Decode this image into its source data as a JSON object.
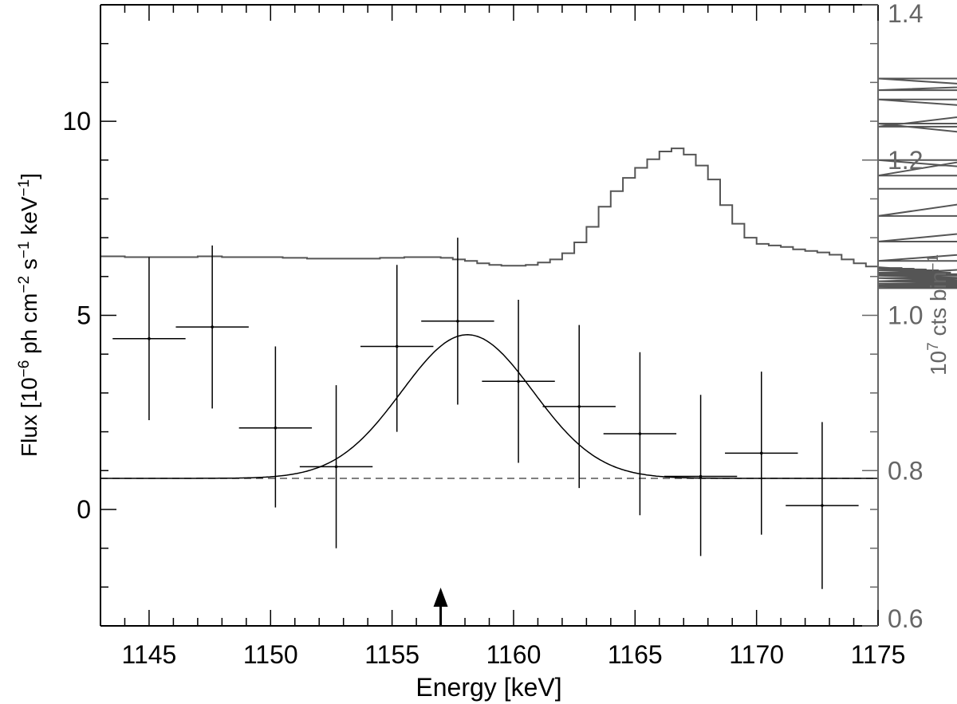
{
  "chart_data": {
    "type": "scatter",
    "xlabel": "Energy [keV]",
    "ylabel_left_parts": [
      "Flux [10",
      "−6",
      " ph cm",
      "−2",
      " s",
      "−1",
      " keV",
      "−1",
      "]"
    ],
    "ylabel_right_parts": [
      "10",
      "7",
      " cts bin",
      "−1"
    ],
    "xlim": [
      1143,
      1175
    ],
    "ylim_left": [
      -3,
      13
    ],
    "ylim_right": [
      0.6,
      1.4
    ],
    "x_ticks": [
      1145,
      1150,
      1155,
      1160,
      1165,
      1170,
      1175
    ],
    "x_tick_labels": [
      "1145",
      "1150",
      "1155",
      "1160",
      "1165",
      "1170",
      "1175"
    ],
    "y_left_ticks": [
      0,
      5,
      10
    ],
    "y_left_tick_labels": [
      "0",
      "5",
      "10"
    ],
    "y_right_ticks": [
      0.6,
      0.8,
      1.0,
      1.2,
      1.4
    ],
    "y_right_tick_labels": [
      "0.6",
      "0.8",
      "1.0",
      "1.2",
      "1.4"
    ],
    "line_marker_energy": 1157.0,
    "colors": {
      "data": "#000000",
      "histogram": "#555555",
      "dashed": "#555555",
      "right_axis": "#666666"
    },
    "data_points": [
      {
        "x": 1145.0,
        "xerr": 1.5,
        "y": 4.4,
        "ylo": 2.3,
        "yhi": 6.5
      },
      {
        "x": 1147.6,
        "xerr": 1.5,
        "y": 4.7,
        "ylo": 2.6,
        "yhi": 6.8
      },
      {
        "x": 1150.2,
        "xerr": 1.5,
        "y": 2.1,
        "ylo": 0.05,
        "yhi": 4.2
      },
      {
        "x": 1152.7,
        "xerr": 1.5,
        "y": 1.1,
        "ylo": -1.0,
        "yhi": 3.2
      },
      {
        "x": 1155.2,
        "xerr": 1.5,
        "y": 4.2,
        "ylo": 2.0,
        "yhi": 6.3
      },
      {
        "x": 1157.7,
        "xerr": 1.5,
        "y": 4.85,
        "ylo": 2.7,
        "yhi": 7.0
      },
      {
        "x": 1160.2,
        "xerr": 1.5,
        "y": 3.3,
        "ylo": 1.2,
        "yhi": 5.4
      },
      {
        "x": 1162.7,
        "xerr": 1.5,
        "y": 2.65,
        "ylo": 0.55,
        "yhi": 4.75
      },
      {
        "x": 1165.2,
        "xerr": 1.5,
        "y": 1.95,
        "ylo": -0.15,
        "yhi": 4.05
      },
      {
        "x": 1167.7,
        "xerr": 1.5,
        "y": 0.85,
        "ylo": -1.2,
        "yhi": 2.95
      },
      {
        "x": 1170.2,
        "xerr": 1.5,
        "y": 1.45,
        "ylo": -0.65,
        "yhi": 3.55
      },
      {
        "x": 1172.7,
        "xerr": 1.5,
        "y": 0.1,
        "ylo": -2.05,
        "yhi": 2.25
      }
    ],
    "model": {
      "type": "gaussian_plus_constant",
      "constant": 0.8,
      "amplitude": 3.7,
      "center": 1158.1,
      "sigma": 2.7
    },
    "background_constant": 0.8,
    "histogram_step": 0.5,
    "histogram_right_axis_values": [
      1.076,
      1.076,
      1.075,
      1.075,
      1.075,
      1.075,
      1.075,
      1.075,
      1.076,
      1.076,
      1.075,
      1.075,
      1.075,
      1.075,
      1.075,
      1.074,
      1.074,
      1.073,
      1.073,
      1.073,
      1.073,
      1.073,
      1.073,
      1.074,
      1.074,
      1.075,
      1.075,
      1.075,
      1.074,
      1.072,
      1.07,
      1.067,
      1.065,
      1.064,
      1.064,
      1.065,
      1.068,
      1.072,
      1.08,
      1.094,
      1.114,
      1.14,
      1.16,
      1.177,
      1.19,
      1.201,
      1.211,
      1.215,
      1.207,
      1.193,
      1.175,
      1.142,
      1.118,
      1.1,
      1.092,
      1.09,
      1.088,
      1.085,
      1.083,
      1.081,
      1.078,
      1.072,
      1.067,
      1.063,
      1.062,
      1.061,
      1.061,
      1.06,
      1.059,
      1.058,
      1.055,
      1.051,
      1.048,
      1.044,
      1.041,
      1.039,
      1.038,
      1.037,
      1.035,
      1.035,
      1.036,
      1.038,
      1.044,
      1.053,
      1.07,
      1.095,
      1.128,
      1.18,
      1.243,
      1.29,
      1.305,
      1.278,
      1.247,
      1.2,
      1.163
    ]
  }
}
